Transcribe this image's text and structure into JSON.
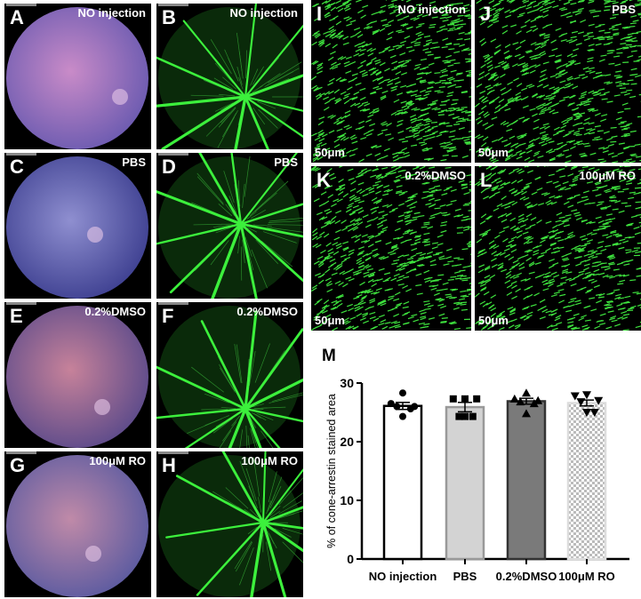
{
  "panels_fundus": [
    {
      "letter": "A",
      "condition": "NO injection"
    },
    {
      "letter": "C",
      "condition": "PBS"
    },
    {
      "letter": "E",
      "condition": "0.2%DMSO"
    },
    {
      "letter": "G",
      "condition": "100μM RO"
    }
  ],
  "panels_angiography": [
    {
      "letter": "B",
      "condition": "NO injection"
    },
    {
      "letter": "D",
      "condition": "PBS"
    },
    {
      "letter": "F",
      "condition": "0.2%DMSO"
    },
    {
      "letter": "H",
      "condition": "100μM RO"
    }
  ],
  "panels_cone": [
    {
      "letter": "I",
      "condition": "NO injection",
      "scale": "50μm"
    },
    {
      "letter": "J",
      "condition": "PBS",
      "scale": "50μm"
    },
    {
      "letter": "K",
      "condition": "0.2%DMSO",
      "scale": "50μm"
    },
    {
      "letter": "L",
      "condition": "100μM RO",
      "scale": "50μm"
    }
  ],
  "chart_data": {
    "panel_letter": "M",
    "type": "bar",
    "categories": [
      "NO injection",
      "PBS",
      "0.2%DMSO",
      "100μM RO"
    ],
    "values": [
      26.1,
      25.9,
      26.9,
      26.6
    ],
    "sem": [
      0.6,
      0.8,
      0.5,
      0.5
    ],
    "points": [
      [
        28.3,
        26.5,
        26.0,
        26.0,
        25.6,
        24.3
      ],
      [
        27.3,
        27.3,
        27.3,
        24.3,
        24.3,
        24.3
      ],
      [
        28.3,
        27.3,
        27.0,
        26.8,
        26.5,
        24.8
      ],
      [
        28.0,
        27.8,
        27.0,
        26.8,
        25.0,
        25.0
      ]
    ],
    "markers": [
      "circle",
      "square",
      "triangle-up",
      "triangle-down"
    ],
    "bar_fills": [
      "#ffffff",
      "#d3d3d3",
      "#7a7a7a",
      "checker"
    ],
    "ylabel": "% of cone-arrestin stained area",
    "ylim": [
      0,
      30
    ],
    "yticks": [
      0,
      10,
      20,
      30
    ]
  }
}
